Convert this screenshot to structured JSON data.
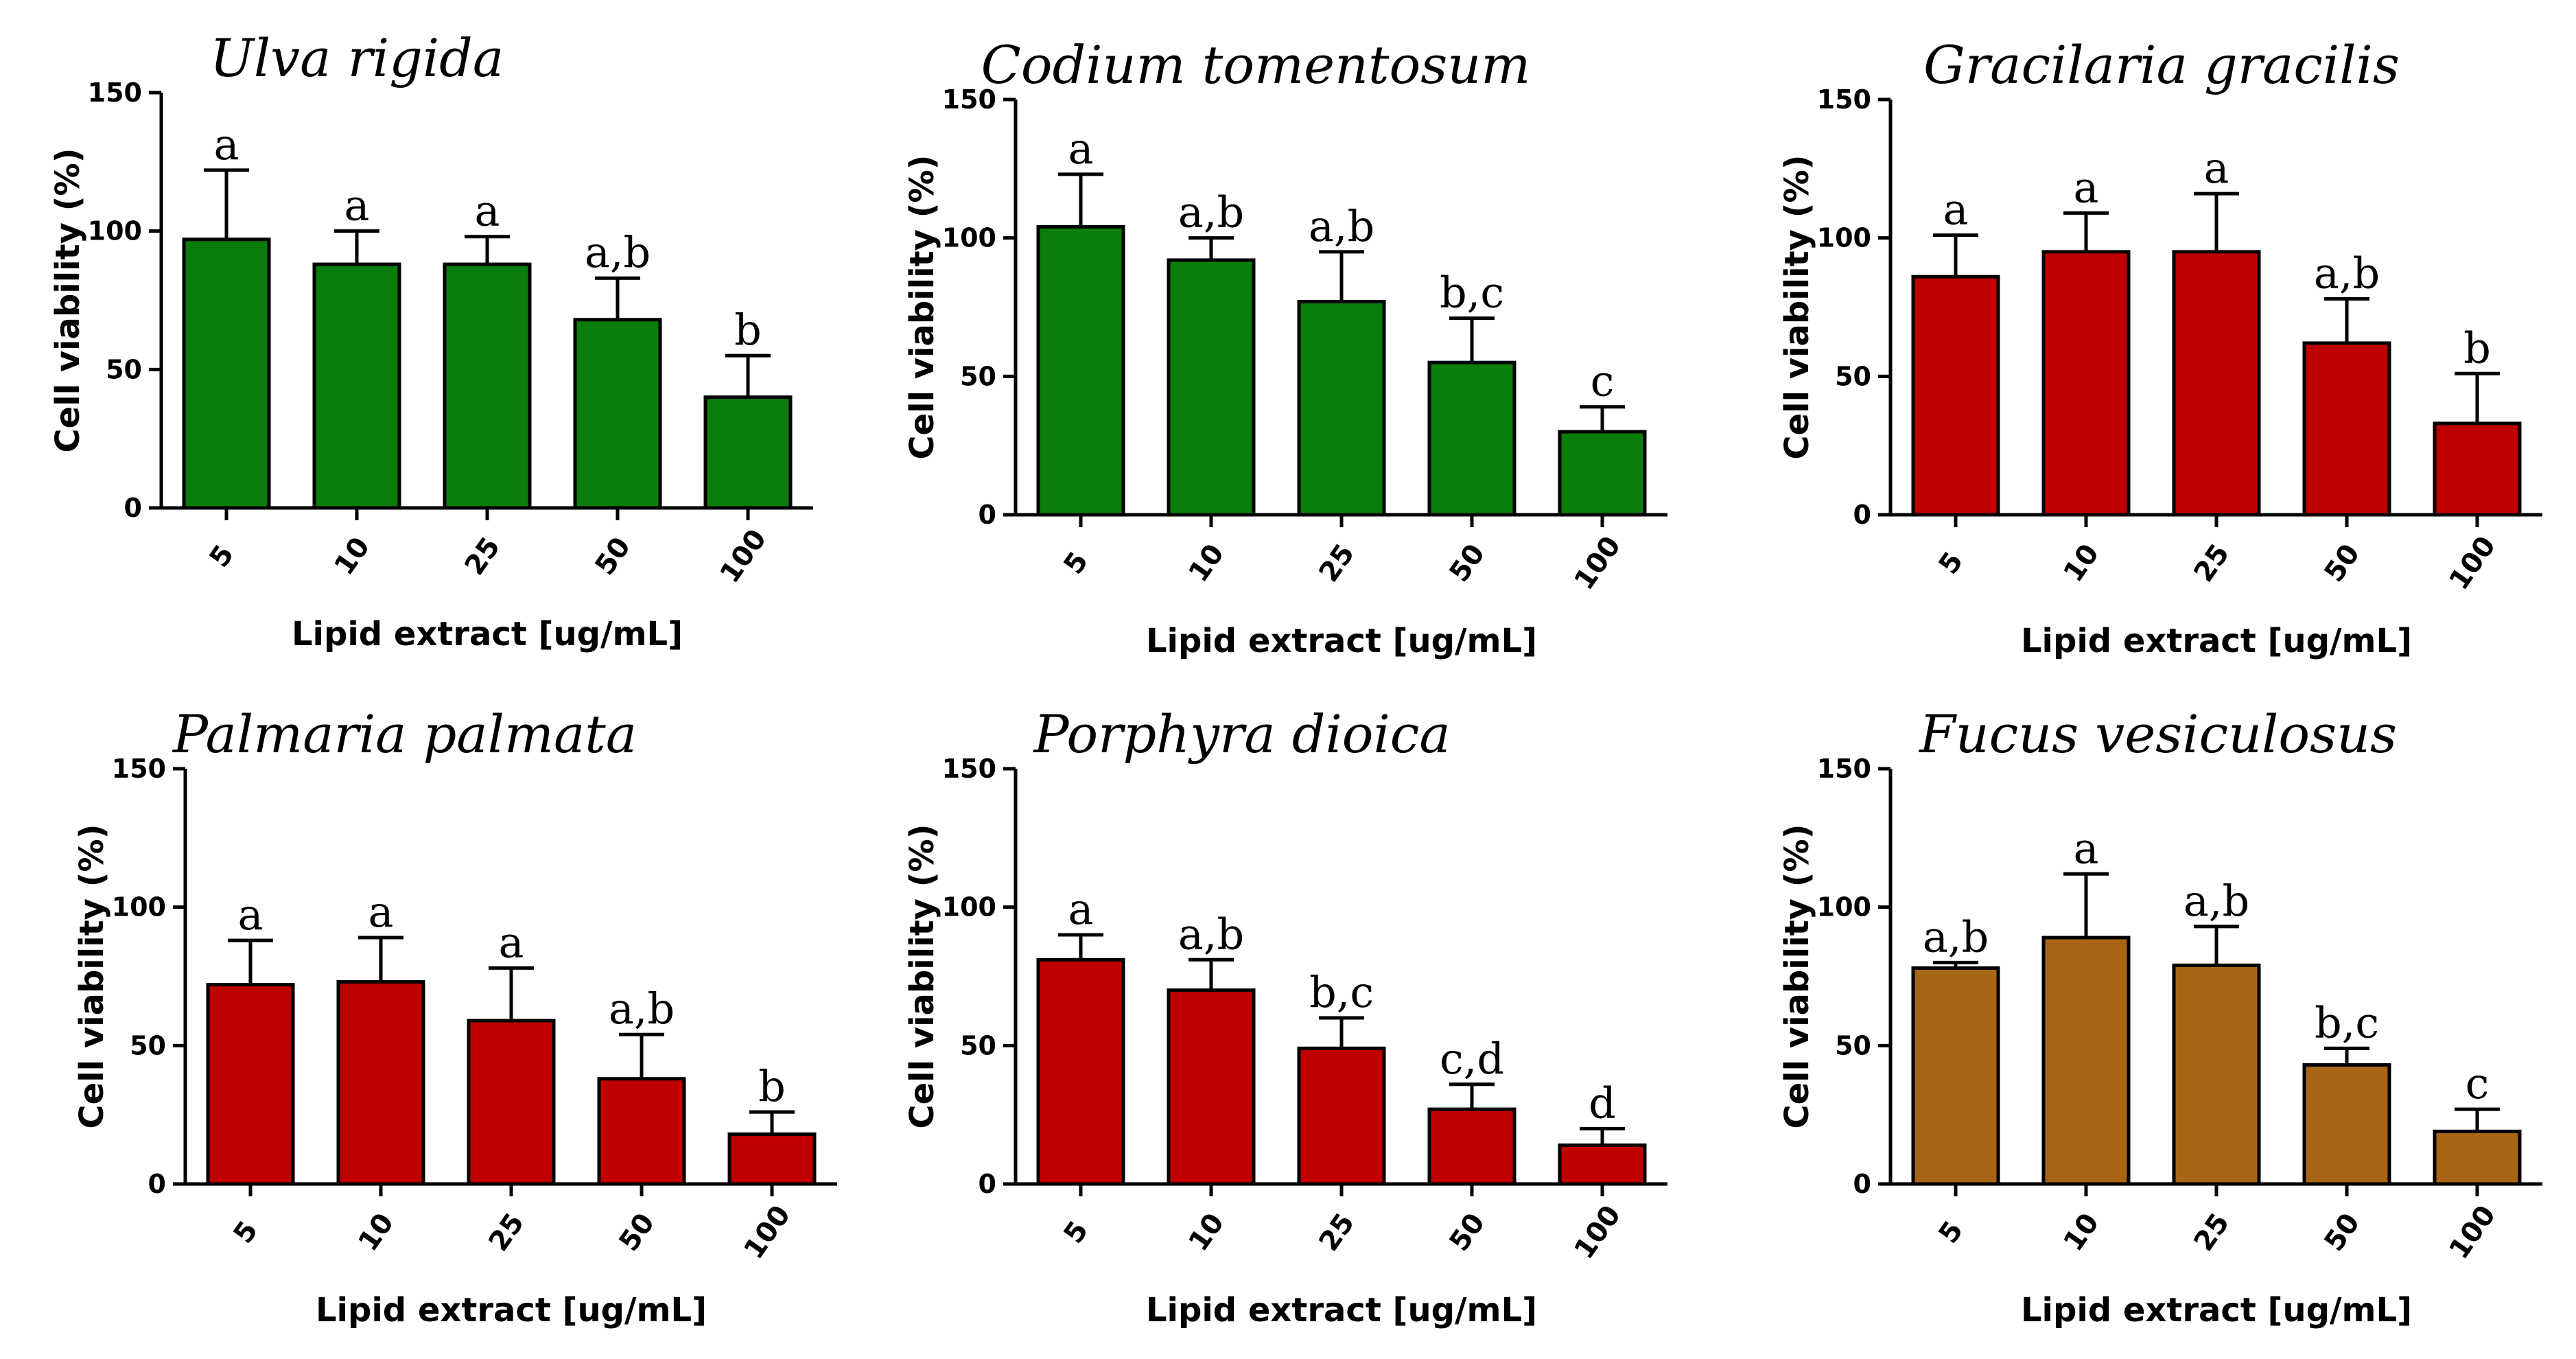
{
  "chart_data": [
    {
      "type": "bar",
      "title": "Ulva rigida",
      "xlabel": "Lipid extract [ug/mL]",
      "ylabel": "Cell viability (%)",
      "ylim": [
        0,
        150
      ],
      "yticks": [
        "0",
        "50",
        "100",
        "150"
      ],
      "categories": [
        "5",
        "10",
        "25",
        "50",
        "100"
      ],
      "values": [
        97,
        88,
        88,
        68,
        40
      ],
      "errors": [
        25,
        12,
        10,
        15,
        15
      ],
      "significance": [
        "a",
        "a",
        "a",
        "a,b",
        "b"
      ],
      "color": "#0b7d0b"
    },
    {
      "type": "bar",
      "title": "Codium tomentosum",
      "xlabel": "Lipid extract [ug/mL]",
      "ylabel": "Cell viability (%)",
      "ylim": [
        0,
        150
      ],
      "yticks": [
        "0",
        "50",
        "100",
        "150"
      ],
      "categories": [
        "5",
        "10",
        "25",
        "50",
        "100"
      ],
      "values": [
        104,
        92,
        77,
        55,
        30
      ],
      "errors": [
        19,
        8,
        18,
        16,
        9
      ],
      "significance": [
        "a",
        "a,b",
        "a,b",
        "b,c",
        "c"
      ],
      "color": "#0b7d0b"
    },
    {
      "type": "bar",
      "title": "Gracilaria gracilis",
      "xlabel": "Lipid extract [ug/mL]",
      "ylabel": "Cell viability (%)",
      "ylim": [
        0,
        150
      ],
      "yticks": [
        "0",
        "50",
        "100",
        "150"
      ],
      "categories": [
        "5",
        "10",
        "25",
        "50",
        "100"
      ],
      "values": [
        86,
        95,
        95,
        62,
        33
      ],
      "errors": [
        15,
        14,
        21,
        16,
        18
      ],
      "significance": [
        "a",
        "a",
        "a",
        "a,b",
        "b"
      ],
      "color": "#c00000"
    },
    {
      "type": "bar",
      "title": "Palmaria palmata",
      "xlabel": "Lipid extract [ug/mL]",
      "ylabel": "Cell viability (%)",
      "ylim": [
        0,
        150
      ],
      "yticks": [
        "0",
        "50",
        "100",
        "150"
      ],
      "categories": [
        "5",
        "10",
        "25",
        "50",
        "100"
      ],
      "values": [
        72,
        73,
        59,
        38,
        18
      ],
      "errors": [
        16,
        16,
        19,
        16,
        8
      ],
      "significance": [
        "a",
        "a",
        "a",
        "a,b",
        "b"
      ],
      "color": "#c00000"
    },
    {
      "type": "bar",
      "title": "Porphyra dioica",
      "xlabel": "Lipid extract [ug/mL]",
      "ylabel": "Cell viability (%)",
      "ylim": [
        0,
        150
      ],
      "yticks": [
        "0",
        "50",
        "100",
        "150"
      ],
      "categories": [
        "5",
        "10",
        "25",
        "50",
        "100"
      ],
      "values": [
        81,
        70,
        49,
        27,
        14
      ],
      "errors": [
        9,
        11,
        11,
        9,
        6
      ],
      "significance": [
        "a",
        "a,b",
        "b,c",
        "c,d",
        "d"
      ],
      "color": "#c00000"
    },
    {
      "type": "bar",
      "title": "Fucus vesiculosus",
      "xlabel": "Lipid extract [ug/mL]",
      "ylabel": "Cell viability (%)",
      "ylim": [
        0,
        150
      ],
      "yticks": [
        "0",
        "50",
        "100",
        "150"
      ],
      "categories": [
        "5",
        "10",
        "25",
        "50",
        "100"
      ],
      "values": [
        78,
        89,
        79,
        43,
        19
      ],
      "errors": [
        2,
        23,
        14,
        6,
        8
      ],
      "significance": [
        "a,b",
        "a",
        "a,b",
        "b,c",
        "c"
      ],
      "color": "#a86614"
    }
  ]
}
